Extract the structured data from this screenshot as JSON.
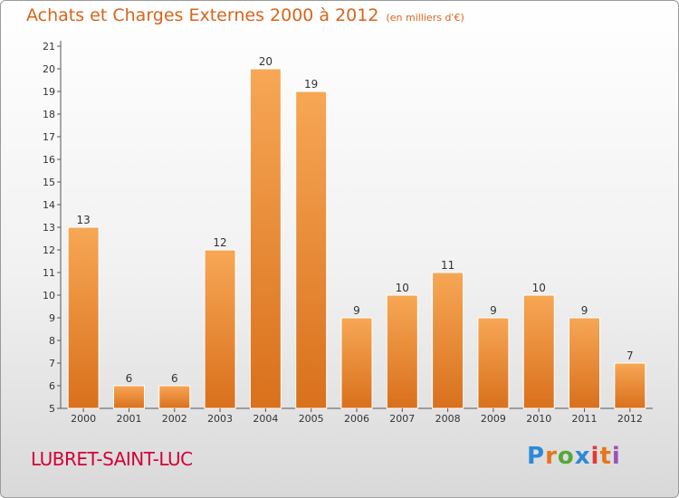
{
  "header": {
    "title": "Achats et Charges Externes 2000 à 2012",
    "subtitle": "(en milliers d'€)"
  },
  "footer": {
    "commune": "LUBRET-SAINT-LUC",
    "logo_text": "Proxiti"
  },
  "colors": {
    "bar_light": "#f7a755",
    "bar_dark": "#d9701c",
    "title": "#d9641b",
    "commune": "#d40038"
  },
  "chart_data": {
    "type": "bar",
    "title": "Achats et Charges Externes 2000 à 2012",
    "subtitle": "(en milliers d'€)",
    "categories": [
      "2000",
      "2001",
      "2002",
      "2003",
      "2004",
      "2005",
      "2006",
      "2007",
      "2008",
      "2009",
      "2010",
      "2011",
      "2012"
    ],
    "values": [
      13,
      6,
      6,
      12,
      20,
      19,
      9,
      10,
      11,
      9,
      10,
      9,
      7
    ],
    "data_labels": [
      "13",
      "6",
      "6",
      "12",
      "20",
      "19",
      "9",
      "10",
      "11",
      "9",
      "10",
      "9",
      "7"
    ],
    "ylim": [
      5,
      21
    ],
    "yticks": [
      5,
      6,
      7,
      8,
      9,
      10,
      11,
      12,
      13,
      14,
      15,
      16,
      17,
      18,
      19,
      20,
      21
    ],
    "grid": false,
    "legend": "none",
    "xlabel": "",
    "ylabel": ""
  }
}
